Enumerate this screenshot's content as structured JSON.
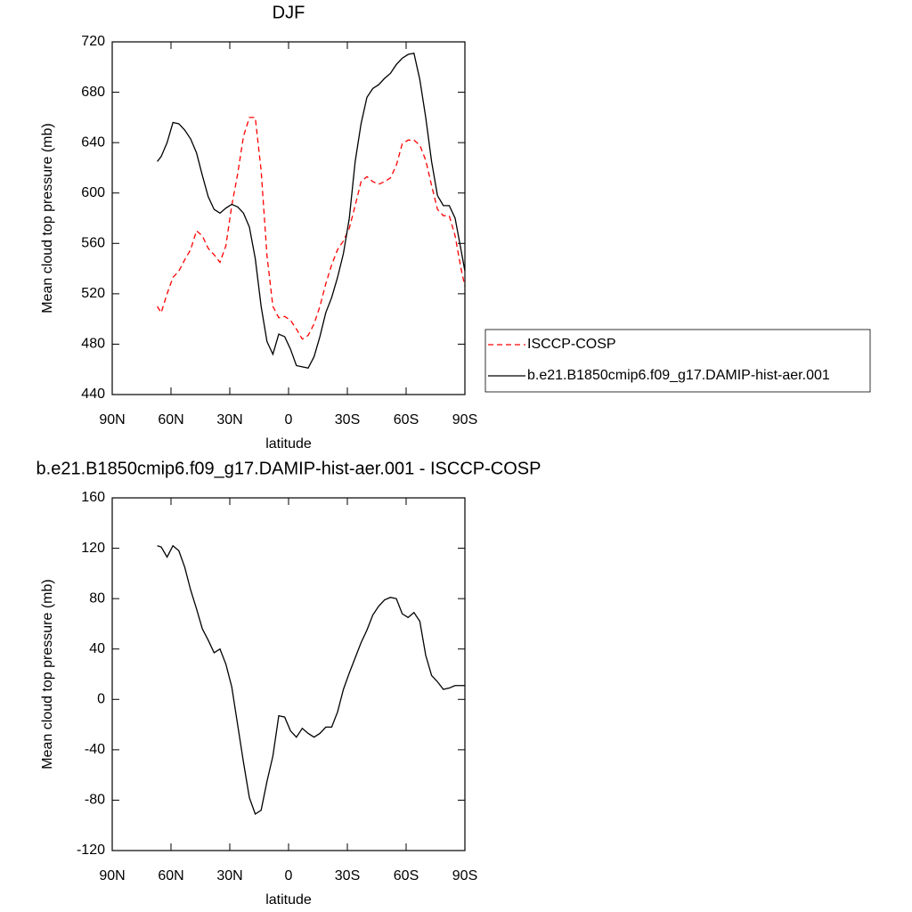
{
  "chart_data": [
    {
      "type": "line",
      "title": "DJF",
      "x_label": "latitude",
      "y_label": "Mean cloud top pressure (mb)",
      "x": [
        67,
        65,
        62,
        59,
        56,
        53,
        50,
        47,
        44,
        41,
        38,
        35,
        32,
        29,
        26,
        23,
        20,
        17,
        14,
        11,
        8,
        5,
        2,
        -1,
        -4,
        -7,
        -10,
        -13,
        -16,
        -19,
        -22,
        -25,
        -28,
        -31,
        -34,
        -37,
        -40,
        -43,
        -46,
        -49,
        -52,
        -55,
        -58,
        -61,
        -64,
        -67,
        -70,
        -73,
        -76,
        -79,
        -82,
        -85,
        -88,
        -90
      ],
      "series": [
        {
          "name": "ISCCP-COSP",
          "color": "#ff0000",
          "linestyle": "dashed",
          "values": [
            510,
            505,
            520,
            533,
            538,
            547,
            555,
            570,
            566,
            556,
            551,
            545,
            558,
            590,
            615,
            645,
            660,
            660,
            618,
            550,
            510,
            501,
            502,
            499,
            492,
            484,
            487,
            496,
            510,
            528,
            543,
            555,
            562,
            572,
            590,
            609,
            613,
            609,
            607,
            609,
            612,
            622,
            639,
            642,
            642,
            638,
            626,
            606,
            587,
            582,
            582,
            566,
            540,
            526
          ]
        },
        {
          "name": "b.e21.B1850cmip6.f09_g17.DAMIP-hist-aer.001",
          "color": "#000000",
          "linestyle": "solid",
          "values": [
            625,
            629,
            640,
            656,
            655,
            650,
            643,
            632,
            614,
            597,
            587,
            584,
            588,
            591,
            589,
            584,
            573,
            548,
            510,
            482,
            472,
            488,
            486,
            476,
            463,
            462,
            461,
            470,
            486,
            505,
            517,
            533,
            552,
            580,
            625,
            655,
            676,
            683,
            686,
            691,
            695,
            702,
            707,
            710,
            711,
            690,
            660,
            625,
            598,
            590,
            590,
            580,
            555,
            538
          ]
        }
      ],
      "xlim": [
        90,
        -90
      ],
      "xticks": [
        {
          "value": 90,
          "label": "90N"
        },
        {
          "value": 60,
          "label": "60N"
        },
        {
          "value": 30,
          "label": "30N"
        },
        0,
        {
          "value": -30,
          "label": "30S"
        },
        {
          "value": -60,
          "label": "60S"
        },
        {
          "value": -90,
          "label": "90S"
        }
      ],
      "ylim": [
        440,
        720
      ],
      "yticks": [
        440,
        480,
        520,
        560,
        600,
        640,
        680,
        720
      ],
      "legend": "right"
    },
    {
      "type": "line",
      "title": "b.e21.B1850cmip6.f09_g17.DAMIP-hist-aer.001 - ISCCP-COSP",
      "x_label": "latitude",
      "y_label": "Mean cloud top pressure (mb)",
      "x": [
        67,
        65,
        62,
        59,
        56,
        53,
        50,
        47,
        44,
        41,
        38,
        35,
        32,
        29,
        26,
        23,
        20,
        17,
        14,
        11,
        8,
        5,
        2,
        -1,
        -4,
        -7,
        -10,
        -13,
        -16,
        -19,
        -22,
        -25,
        -28,
        -31,
        -34,
        -37,
        -40,
        -43,
        -46,
        -49,
        -52,
        -55,
        -58,
        -61,
        -64,
        -67,
        -70,
        -73,
        -76,
        -79,
        -82,
        -85,
        -88,
        -90
      ],
      "series": [
        {
          "color": "#000000",
          "linestyle": "solid",
          "values": [
            122,
            121,
            113,
            122,
            118,
            105,
            87,
            72,
            56,
            47,
            37,
            40,
            28,
            10,
            -20,
            -50,
            -78,
            -91,
            -88,
            -65,
            -45,
            -13,
            -14,
            -25,
            -30,
            -23,
            -27,
            -30,
            -27,
            -22,
            -22,
            -10,
            8,
            21,
            33,
            45,
            55,
            67,
            74,
            79,
            81,
            80,
            68,
            65,
            69,
            62,
            35,
            19,
            14,
            8,
            9,
            11,
            11,
            11
          ]
        }
      ],
      "xlim": [
        90,
        -90
      ],
      "xticks": [
        {
          "value": 90,
          "label": "90N"
        },
        {
          "value": 60,
          "label": "60N"
        },
        {
          "value": 30,
          "label": "30N"
        },
        0,
        {
          "value": -30,
          "label": "30S"
        },
        {
          "value": -60,
          "label": "60S"
        },
        {
          "value": -90,
          "label": "90S"
        }
      ],
      "ylim": [
        -120,
        160
      ],
      "yticks": [
        -120,
        -80,
        -40,
        0,
        40,
        80,
        120,
        160
      ]
    }
  ]
}
